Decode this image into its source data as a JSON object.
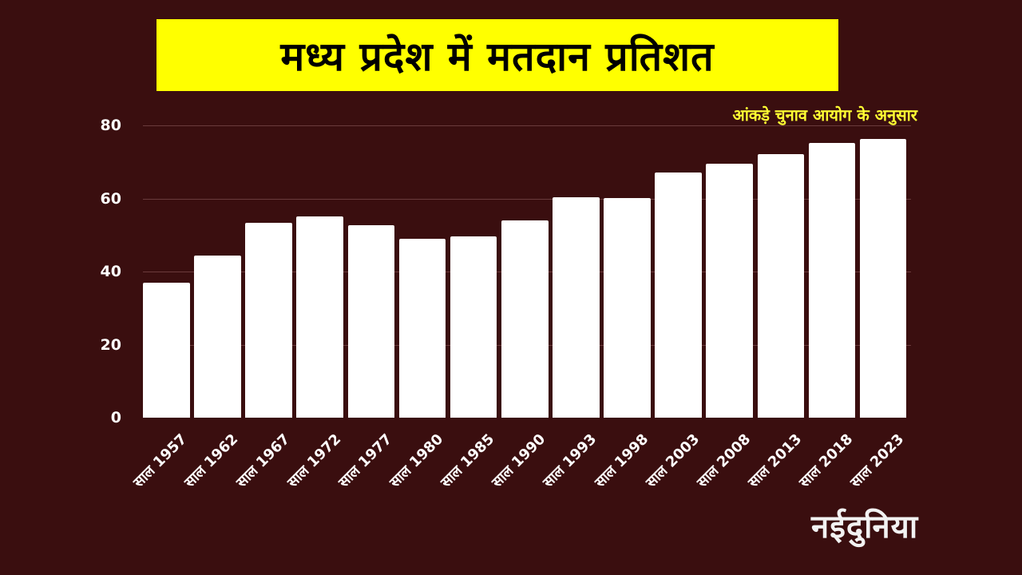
{
  "header": {
    "title": "मध्य प्रदेश में मतदान प्रतिशत",
    "source_note": "आंकड़े चुनाव आयोग के अनुसार"
  },
  "branding": {
    "logo_text": "नईदुनिया"
  },
  "colors": {
    "background": "#3a0e0f",
    "title_bg": "#ffff00",
    "source_text": "#ffff33",
    "bars": "#ffffff",
    "gridline": "#6a3b3c"
  },
  "chart_data": {
    "type": "bar",
    "title": "मध्य प्रदेश में मतदान प्रतिशत",
    "subtitle": "आंकड़े चुनाव आयोग के अनुसार",
    "xlabel": "",
    "ylabel": "",
    "categories": [
      "साल 1957",
      "साल 1962",
      "साल 1967",
      "साल 1972",
      "साल 1977",
      "साल 1980",
      "साल 1985",
      "साल 1990",
      "साल 1993",
      "साल 1998",
      "साल 2003",
      "साल 2008",
      "साल 2013",
      "साल 2018",
      "साल 2023"
    ],
    "values": [
      37.0,
      44.4,
      53.3,
      55.1,
      52.7,
      49.0,
      49.6,
      54.0,
      60.3,
      60.2,
      67.2,
      69.5,
      72.1,
      75.3,
      76.2
    ],
    "ylim": [
      0,
      80
    ],
    "yticks": [
      "0",
      "20",
      "40",
      "60",
      "80"
    ],
    "grid": true,
    "legend": null
  }
}
